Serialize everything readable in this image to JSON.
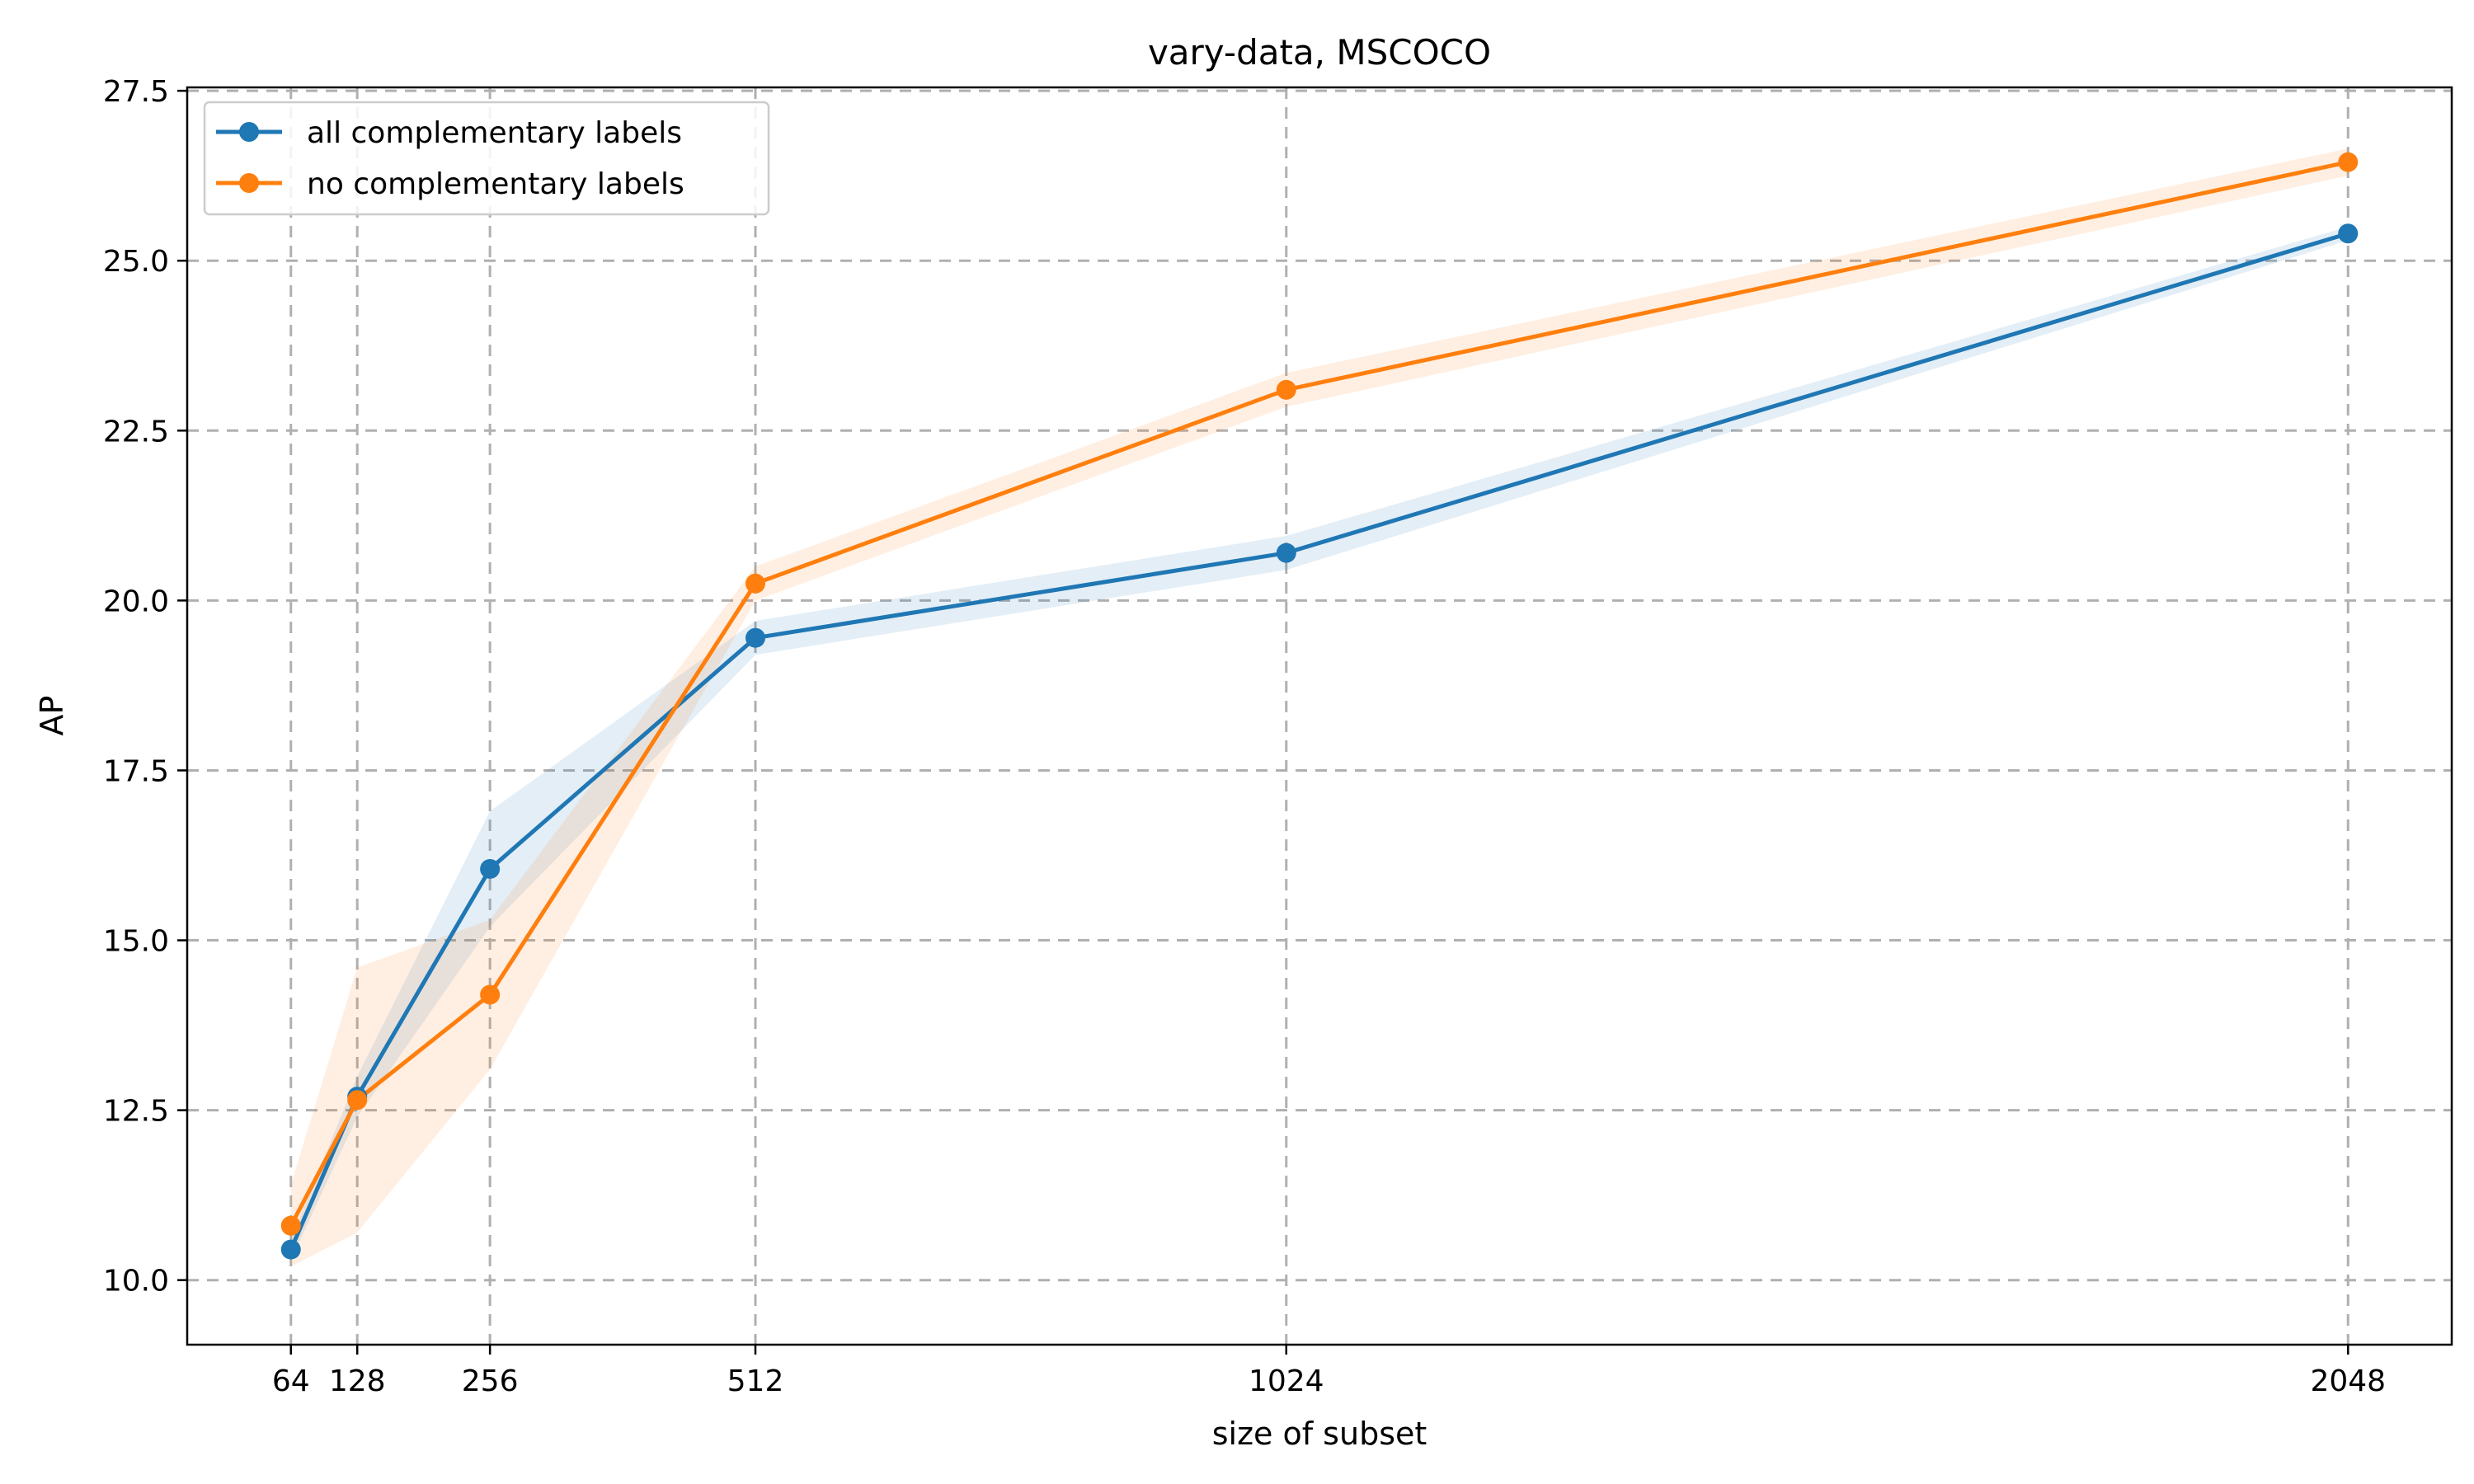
{
  "chart_data": {
    "type": "line",
    "title": "vary-data, MSCOCO",
    "xlabel": "size of subset",
    "ylabel": "AP",
    "x": [
      64,
      128,
      256,
      512,
      1024,
      2048
    ],
    "xticks": [
      "64",
      "128",
      "256",
      "512",
      "1024",
      "2048"
    ],
    "xlim": [
      -36,
      2148
    ],
    "ylim": [
      9.05,
      27.55
    ],
    "yticks": [
      10.0,
      12.5,
      15.0,
      17.5,
      20.0,
      22.5,
      25.0,
      27.5
    ],
    "ytick_labels": [
      "10.0",
      "12.5",
      "15.0",
      "17.5",
      "20.0",
      "22.5",
      "25.0",
      "27.5"
    ],
    "grid": true,
    "grid_style": "dashed",
    "legend_position": "top-left",
    "series": [
      {
        "name": "all complementary labels",
        "color": "#1f77b4",
        "values": [
          10.45,
          12.7,
          16.05,
          19.45,
          20.7,
          25.4
        ],
        "lower": [
          10.3,
          12.4,
          15.2,
          19.2,
          20.45,
          25.3
        ],
        "upper": [
          10.6,
          13.0,
          16.9,
          19.7,
          20.95,
          25.5
        ]
      },
      {
        "name": "no complementary labels",
        "color": "#ff7f0e",
        "values": [
          10.8,
          12.65,
          14.2,
          20.25,
          23.1,
          26.45
        ],
        "lower": [
          10.2,
          10.7,
          13.1,
          20.0,
          22.85,
          26.25
        ],
        "upper": [
          11.4,
          14.6,
          15.3,
          20.5,
          23.35,
          26.65
        ]
      }
    ]
  }
}
